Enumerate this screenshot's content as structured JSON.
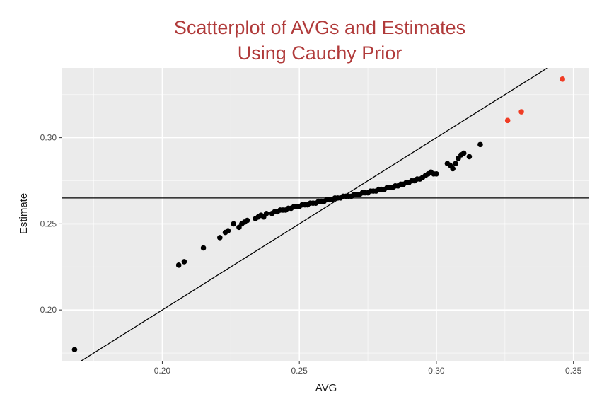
{
  "chart_data": {
    "type": "scatter",
    "title_line1": "Scatterplot of AVGs and Estimates",
    "title_line2": "Using Cauchy Prior",
    "xlabel": "AVG",
    "ylabel": "Estimate",
    "xlim": [
      0.1635,
      0.3555
    ],
    "ylim": [
      0.1705,
      0.3405
    ],
    "x_ticks": [
      {
        "value": 0.2,
        "label": "0.20"
      },
      {
        "value": 0.25,
        "label": "0.25"
      },
      {
        "value": 0.3,
        "label": "0.30"
      },
      {
        "value": 0.35,
        "label": "0.35"
      }
    ],
    "y_ticks": [
      {
        "value": 0.2,
        "label": "0.20"
      },
      {
        "value": 0.25,
        "label": "0.25"
      },
      {
        "value": 0.3,
        "label": "0.30"
      }
    ],
    "grid": true,
    "reference_lines": [
      {
        "type": "identity",
        "slope": 1,
        "intercept": 0
      },
      {
        "type": "horizontal",
        "y": 0.265
      }
    ],
    "colors": {
      "title": "#b03a3a",
      "panel": "#ebebeb",
      "grid_major": "#ffffff",
      "point": "#000000",
      "highlight": "#f03c24",
      "line": "#000000"
    },
    "series": [
      {
        "highlight": false,
        "points": [
          [
            0.168,
            0.177
          ],
          [
            0.206,
            0.226
          ],
          [
            0.208,
            0.228
          ],
          [
            0.215,
            0.236
          ],
          [
            0.221,
            0.242
          ],
          [
            0.223,
            0.245
          ],
          [
            0.224,
            0.246
          ],
          [
            0.226,
            0.25
          ],
          [
            0.228,
            0.248
          ],
          [
            0.229,
            0.25
          ],
          [
            0.23,
            0.251
          ],
          [
            0.231,
            0.252
          ],
          [
            0.234,
            0.253
          ],
          [
            0.235,
            0.254
          ],
          [
            0.236,
            0.255
          ],
          [
            0.237,
            0.254
          ],
          [
            0.238,
            0.256
          ],
          [
            0.24,
            0.256
          ],
          [
            0.241,
            0.257
          ],
          [
            0.242,
            0.257
          ],
          [
            0.243,
            0.258
          ],
          [
            0.244,
            0.258
          ],
          [
            0.245,
            0.258
          ],
          [
            0.246,
            0.259
          ],
          [
            0.247,
            0.259
          ],
          [
            0.248,
            0.26
          ],
          [
            0.249,
            0.26
          ],
          [
            0.25,
            0.26
          ],
          [
            0.251,
            0.261
          ],
          [
            0.252,
            0.261
          ],
          [
            0.253,
            0.261
          ],
          [
            0.254,
            0.262
          ],
          [
            0.255,
            0.262
          ],
          [
            0.256,
            0.262
          ],
          [
            0.257,
            0.263
          ],
          [
            0.258,
            0.263
          ],
          [
            0.259,
            0.263
          ],
          [
            0.26,
            0.264
          ],
          [
            0.261,
            0.264
          ],
          [
            0.262,
            0.264
          ],
          [
            0.263,
            0.265
          ],
          [
            0.264,
            0.265
          ],
          [
            0.265,
            0.265
          ],
          [
            0.266,
            0.266
          ],
          [
            0.267,
            0.266
          ],
          [
            0.268,
            0.266
          ],
          [
            0.269,
            0.266
          ],
          [
            0.27,
            0.267
          ],
          [
            0.271,
            0.267
          ],
          [
            0.272,
            0.267
          ],
          [
            0.273,
            0.268
          ],
          [
            0.274,
            0.268
          ],
          [
            0.275,
            0.268
          ],
          [
            0.276,
            0.269
          ],
          [
            0.277,
            0.269
          ],
          [
            0.278,
            0.269
          ],
          [
            0.279,
            0.27
          ],
          [
            0.28,
            0.27
          ],
          [
            0.281,
            0.27
          ],
          [
            0.282,
            0.271
          ],
          [
            0.283,
            0.271
          ],
          [
            0.284,
            0.271
          ],
          [
            0.285,
            0.272
          ],
          [
            0.286,
            0.272
          ],
          [
            0.287,
            0.273
          ],
          [
            0.288,
            0.273
          ],
          [
            0.289,
            0.274
          ],
          [
            0.29,
            0.274
          ],
          [
            0.291,
            0.275
          ],
          [
            0.292,
            0.275
          ],
          [
            0.293,
            0.276
          ],
          [
            0.294,
            0.276
          ],
          [
            0.295,
            0.277
          ],
          [
            0.296,
            0.278
          ],
          [
            0.297,
            0.279
          ],
          [
            0.298,
            0.28
          ],
          [
            0.299,
            0.279
          ],
          [
            0.3,
            0.279
          ],
          [
            0.304,
            0.285
          ],
          [
            0.305,
            0.284
          ],
          [
            0.306,
            0.282
          ],
          [
            0.307,
            0.285
          ],
          [
            0.308,
            0.288
          ],
          [
            0.309,
            0.29
          ],
          [
            0.31,
            0.291
          ],
          [
            0.312,
            0.289
          ],
          [
            0.316,
            0.296
          ]
        ]
      },
      {
        "highlight": true,
        "points": [
          [
            0.326,
            0.31
          ],
          [
            0.331,
            0.315
          ],
          [
            0.346,
            0.334
          ]
        ]
      }
    ]
  }
}
